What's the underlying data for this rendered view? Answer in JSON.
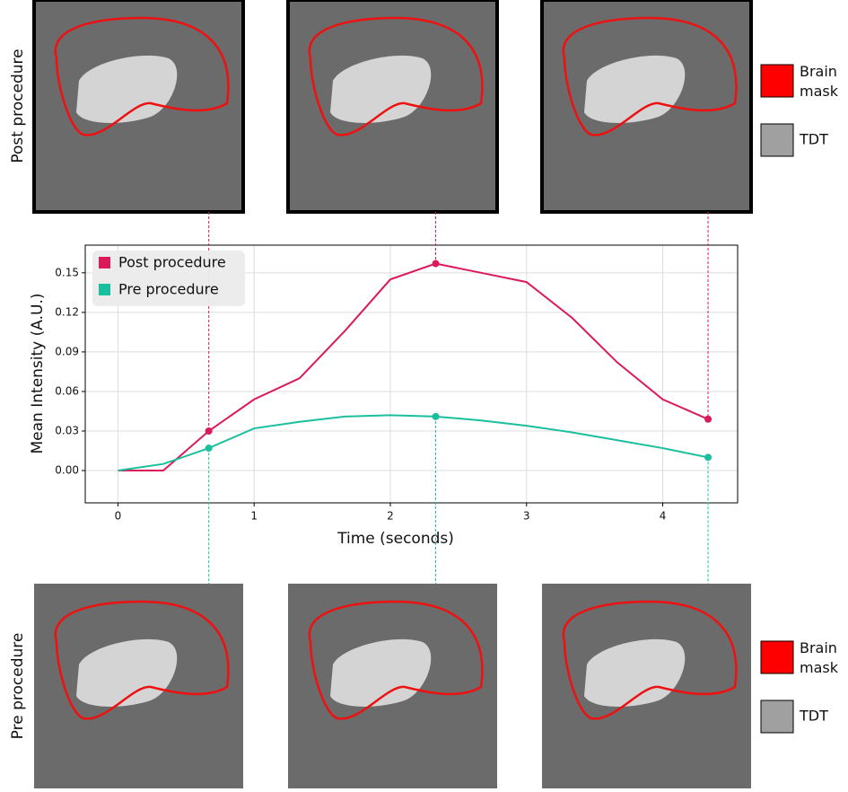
{
  "chart_data": {
    "type": "line",
    "x_label": "Time (seconds)",
    "y_label": "Mean Intensity (A.U.)",
    "x": [
      0,
      0.333,
      0.667,
      1,
      1.333,
      1.667,
      2,
      2.333,
      2.667,
      3,
      3.333,
      3.667,
      4,
      4.333
    ],
    "series": [
      {
        "name": "Post procedure",
        "color": "#db1a5a",
        "values": [
          0,
          0,
          0.03,
          0.054,
          0.07,
          0.106,
          0.145,
          0.157,
          0.15,
          0.143,
          0.116,
          0.082,
          0.054,
          0.039
        ]
      },
      {
        "name": "Pre procedure",
        "color": "#1abf9e",
        "values": [
          0,
          0.005,
          0.017,
          0.032,
          0.037,
          0.041,
          0.042,
          0.041,
          0.038,
          0.034,
          0.029,
          0.023,
          0.017,
          0.01
        ]
      }
    ],
    "marked_points": [
      2,
      7,
      13
    ],
    "xlim": [
      -0.24,
      4.55
    ],
    "xticks": [
      0,
      1,
      2,
      3,
      4
    ],
    "ylim": [
      -0.0245,
      0.171
    ],
    "yticks": [
      {
        "value": 0,
        "label": "0.00"
      },
      0.03,
      0.06,
      0.09,
      0.12,
      0.15
    ],
    "grid": true,
    "legend": "upper left"
  },
  "image_rows": [
    {
      "label": "Post procedure",
      "legend": [
        {
          "label": "Brain mask",
          "color": "#ff0000"
        },
        {
          "label": "TDT",
          "color": "#a0a0a0"
        }
      ]
    },
    {
      "label": "Pre procedure",
      "legend": [
        {
          "label": "Brain mask",
          "color": "#ff0000"
        },
        {
          "label": "TDT",
          "color": "#a0a0a0"
        }
      ]
    }
  ]
}
